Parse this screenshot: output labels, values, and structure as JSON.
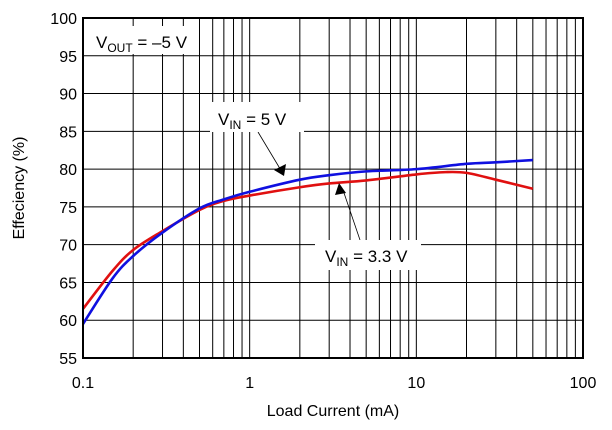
{
  "chart_data": {
    "type": "line",
    "title": "",
    "xlabel": "Load Current (mA)",
    "ylabel": "Effeciency (%)",
    "xscale": "log",
    "xlim": [
      0.1,
      100
    ],
    "ylim": [
      55,
      100
    ],
    "grid": true,
    "x_ticks": [
      "0.1",
      "1",
      "10",
      "100"
    ],
    "x_tick_values": [
      0.1,
      1,
      10,
      100
    ],
    "y_ticks": [
      "55",
      "60",
      "65",
      "70",
      "75",
      "80",
      "85",
      "90",
      "95",
      "100"
    ],
    "y_tick_values": [
      55,
      60,
      65,
      70,
      75,
      80,
      85,
      90,
      95,
      100
    ],
    "condition": {
      "prefix": "V",
      "sub": "OUT",
      "suffix": " = –5 V"
    },
    "series": [
      {
        "name": "VIN = 5 V",
        "label_prefix": "V",
        "label_sub": "IN",
        "label_suffix": " = 5 V",
        "color": "#1010e0",
        "x": [
          0.1,
          0.15,
          0.2,
          0.3,
          0.5,
          0.7,
          1,
          2,
          3,
          5,
          10,
          20,
          30,
          50
        ],
        "y": [
          59.5,
          65.5,
          68.5,
          71.6,
          74.8,
          76.0,
          77.0,
          78.6,
          79.2,
          79.7,
          80.0,
          80.7,
          80.9,
          81.2
        ]
      },
      {
        "name": "VIN = 3.3 V",
        "label_prefix": "V",
        "label_sub": "IN",
        "label_suffix": " = 3.3 V",
        "color": "#e01010",
        "x": [
          0.1,
          0.15,
          0.2,
          0.3,
          0.5,
          0.7,
          1,
          2,
          3,
          5,
          10,
          15,
          20,
          30,
          50
        ],
        "y": [
          61.5,
          66.5,
          69.3,
          71.8,
          74.6,
          75.8,
          76.5,
          77.6,
          78.1,
          78.5,
          79.3,
          79.6,
          79.5,
          78.6,
          77.4
        ]
      }
    ]
  }
}
